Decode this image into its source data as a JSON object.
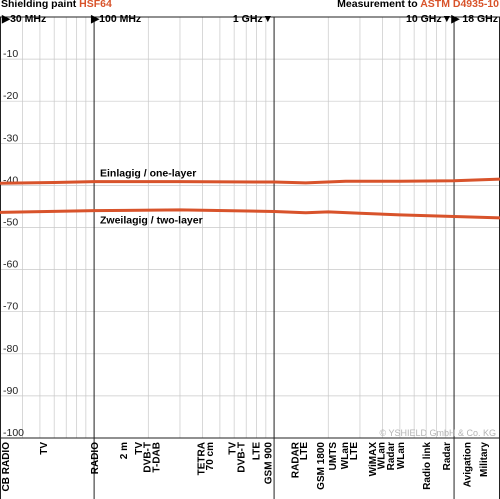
{
  "header": {
    "title_prefix": "Shielding paint ",
    "product": "HSF64",
    "measurement_prefix": "Measurement to ",
    "standard": "ASTM D4935-10",
    "accent_color": "#d8532b"
  },
  "chart_data": {
    "type": "line",
    "x_scale": "log",
    "x_unit": "MHz",
    "xlim": [
      30,
      18000
    ],
    "ylim": [
      -100,
      0
    ],
    "y_ticks": [
      -10,
      -20,
      -30,
      -40,
      -50,
      -60,
      -70,
      -80,
      -90,
      -100
    ],
    "x_markers": [
      {
        "label": "30 MHz",
        "value": 30
      },
      {
        "label": "100 MHz",
        "value": 100
      },
      {
        "label": "1 GHz",
        "value": 1000
      },
      {
        "label": "10 GHz",
        "value": 10000
      },
      {
        "label": "18 GHz",
        "value": 18000
      }
    ],
    "series": [
      {
        "name": "Einlagig / one-layer",
        "color": "#d8532b",
        "x": [
          30,
          60,
          100,
          300,
          1000,
          1500,
          2500,
          5000,
          10000,
          18000
        ],
        "y": [
          -39.5,
          -39.3,
          -39.1,
          -39.1,
          -39.2,
          -39.4,
          -39.0,
          -39.0,
          -38.9,
          -38.5
        ]
      },
      {
        "name": "Zweilagig / two-layer",
        "color": "#d8532b",
        "x": [
          30,
          100,
          300,
          1000,
          1500,
          2000,
          3000,
          5000,
          10000,
          18000
        ],
        "y": [
          -46.4,
          -46.0,
          -45.8,
          -46.2,
          -46.5,
          -46.3,
          -46.6,
          -47.0,
          -47.4,
          -47.7
        ]
      }
    ],
    "band_labels": [
      {
        "text": "CB RADIO",
        "freq": 30
      },
      {
        "text": "TV",
        "freq": 52
      },
      {
        "text": "RADIO",
        "freq": 100
      },
      {
        "text": "2 m",
        "freq": 145
      },
      {
        "text": "TV",
        "freq": 175
      },
      {
        "text": "DVB-T",
        "freq": 195
      },
      {
        "text": "T-DAB",
        "freq": 220
      },
      {
        "text": "TETRA",
        "freq": 390
      },
      {
        "text": "70 cm",
        "freq": 435
      },
      {
        "text": "TV",
        "freq": 580
      },
      {
        "text": "DVB-T",
        "freq": 650
      },
      {
        "text": "LTE",
        "freq": 790
      },
      {
        "text": "GSM 900",
        "freq": 920
      },
      {
        "text": "RADAR",
        "freq": 1300
      },
      {
        "text": "LTE",
        "freq": 1450
      },
      {
        "text": "GSM 1800",
        "freq": 1800
      },
      {
        "text": "UMTS",
        "freq": 2100
      },
      {
        "text": "WLan",
        "freq": 2450
      },
      {
        "text": "LTE",
        "freq": 2750
      },
      {
        "text": "WiMAX",
        "freq": 3500
      },
      {
        "text": "WLan",
        "freq": 3900
      },
      {
        "text": "Radar",
        "freq": 4400
      },
      {
        "text": "WLan",
        "freq": 5000
      },
      {
        "text": "Radio link",
        "freq": 7000
      },
      {
        "text": "Radar",
        "freq": 9000
      },
      {
        "text": "Avigation",
        "freq": 11700
      },
      {
        "text": "Military",
        "freq": 14500
      }
    ],
    "grid": true,
    "copyright": "© YSHIELD GmbH & Co. KG"
  }
}
